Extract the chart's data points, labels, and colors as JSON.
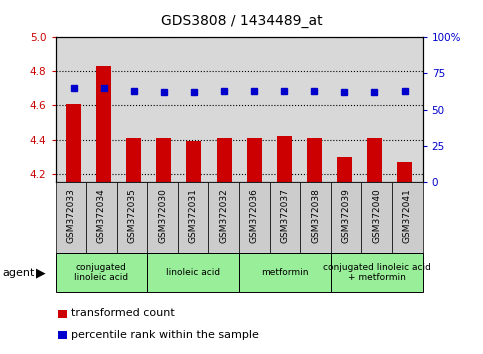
{
  "title": "GDS3808 / 1434489_at",
  "samples": [
    "GSM372033",
    "GSM372034",
    "GSM372035",
    "GSM372030",
    "GSM372031",
    "GSM372032",
    "GSM372036",
    "GSM372037",
    "GSM372038",
    "GSM372039",
    "GSM372040",
    "GSM372041"
  ],
  "bar_values": [
    4.61,
    4.83,
    4.41,
    4.41,
    4.39,
    4.41,
    4.41,
    4.42,
    4.41,
    4.3,
    4.41,
    4.27
  ],
  "dot_values": [
    65,
    65,
    63,
    62,
    62,
    63,
    63,
    63,
    63,
    62,
    62,
    63
  ],
  "ylim_left": [
    4.15,
    5.0
  ],
  "ylim_right": [
    0,
    100
  ],
  "yticks_left": [
    4.2,
    4.4,
    4.6,
    4.8,
    5.0
  ],
  "yticks_right": [
    0,
    25,
    50,
    75,
    100
  ],
  "ytick_labels_right": [
    "0",
    "25",
    "50",
    "75",
    "100%"
  ],
  "bar_color": "#cc0000",
  "dot_color": "#0000cc",
  "agent_groups": [
    {
      "label": "conjugated\nlinoleic acid",
      "start": 0,
      "end": 3,
      "color": "#99ee99"
    },
    {
      "label": "linoleic acid",
      "start": 3,
      "end": 6,
      "color": "#99ee99"
    },
    {
      "label": "metformin",
      "start": 6,
      "end": 9,
      "color": "#99ee99"
    },
    {
      "label": "conjugated linoleic acid\n+ metformin",
      "start": 9,
      "end": 12,
      "color": "#99ee99"
    }
  ],
  "agent_label": "agent",
  "legend_bar_label": "transformed count",
  "legend_dot_label": "percentile rank within the sample",
  "plot_bg_color": "#d8d8d8",
  "xtick_bg_color": "#cccccc",
  "bar_width": 0.5,
  "dot_size": 5
}
